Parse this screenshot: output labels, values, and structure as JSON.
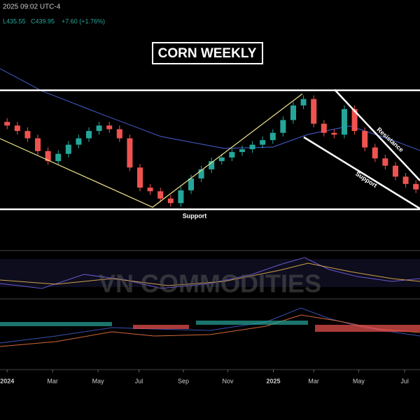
{
  "chart_data": {
    "type": "candlestick",
    "title": "CORN WEEKLY",
    "header": "2025 09:02 UTC-4",
    "low_label": "L435.55",
    "close_label": "C439.95",
    "change_label": "+7.60 (+1.76%)",
    "annotations": [
      "Support",
      "Support",
      "Resistance"
    ],
    "watermark": "VN COMMODITIES",
    "up_color": "#26a69a",
    "down_color": "#ef5350",
    "xlim": [
      -1.4,
      80.8
    ],
    "ylim": [
      375.8,
      521.5
    ],
    "xticks": [
      {
        "value": 0,
        "label": "2024"
      },
      {
        "value": 8.9,
        "label": "Mar"
      },
      {
        "value": 17.8,
        "label": "May"
      },
      {
        "value": 25.8,
        "label": "Jul"
      },
      {
        "value": 34.5,
        "label": "Sep"
      },
      {
        "value": 43.2,
        "label": "Nov"
      },
      {
        "value": 52.1,
        "label": "2025"
      },
      {
        "value": 60,
        "label": "Mar"
      },
      {
        "value": 68.8,
        "label": "May"
      },
      {
        "value": 77.8,
        "label": "Jul"
      }
    ],
    "x": [
      0,
      2,
      4,
      6,
      8,
      10,
      12,
      14,
      16,
      18,
      20,
      22,
      24,
      26,
      28,
      30,
      32,
      34,
      36,
      38,
      40,
      42,
      44,
      46,
      48,
      50,
      52,
      54,
      56,
      58,
      60,
      62,
      64,
      66,
      68,
      70,
      72,
      74,
      76,
      78,
      80
    ],
    "open": [
      480,
      476,
      470,
      462,
      448,
      437,
      445,
      455,
      462,
      470,
      476,
      472,
      462,
      430,
      408,
      404,
      396,
      391,
      405,
      418,
      428,
      437,
      441,
      447,
      450,
      455,
      460,
      468,
      482,
      498,
      505,
      478,
      468,
      466,
      494,
      470,
      452,
      440,
      432,
      420,
      412
    ],
    "high": [
      484,
      480,
      474,
      466,
      452,
      449,
      459,
      466,
      474,
      480,
      480,
      476,
      466,
      434,
      412,
      408,
      400,
      409,
      422,
      432,
      441,
      445,
      451,
      454,
      459,
      464,
      472,
      486,
      502,
      509,
      509,
      482,
      472,
      498,
      498,
      474,
      456,
      444,
      436,
      424,
      416
    ],
    "low": [
      472,
      466,
      458,
      444,
      433,
      433,
      441,
      451,
      458,
      466,
      468,
      458,
      426,
      404,
      400,
      392,
      387,
      387,
      401,
      414,
      424,
      433,
      437,
      443,
      446,
      451,
      456,
      464,
      478,
      494,
      474,
      464,
      462,
      462,
      466,
      448,
      436,
      428,
      416,
      408,
      402
    ],
    "close": [
      476,
      470,
      462,
      448,
      437,
      445,
      455,
      462,
      470,
      476,
      472,
      462,
      430,
      408,
      404,
      396,
      391,
      405,
      418,
      428,
      437,
      441,
      447,
      450,
      455,
      460,
      468,
      482,
      498,
      505,
      478,
      468,
      466,
      494,
      470,
      452,
      440,
      432,
      420,
      412,
      406
    ]
  }
}
